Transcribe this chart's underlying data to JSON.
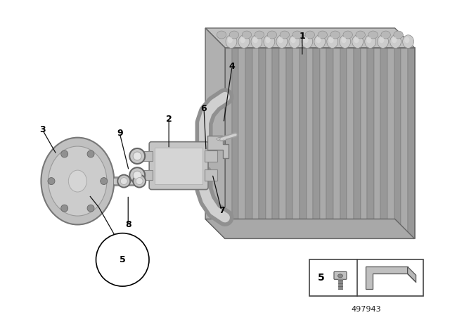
{
  "background_color": "#ffffff",
  "part_color": "#b8b8b8",
  "part_color_light": "#cccccc",
  "part_color_dark": "#909090",
  "fin_color_a": "#aaaaaa",
  "fin_color_b": "#999999",
  "pipe_color_light": "#d0d0d0",
  "pipe_color_dark": "#a0a0a0",
  "line_color": "#222222",
  "text_color": "#000000",
  "part_number": "497943"
}
